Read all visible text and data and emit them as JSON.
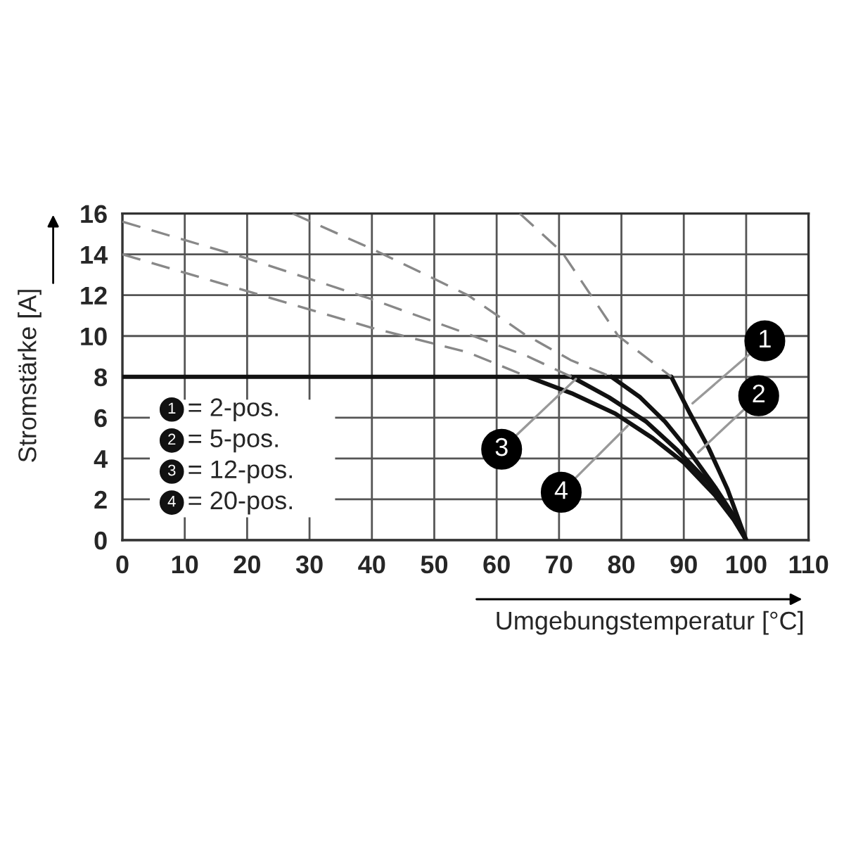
{
  "chart_data": {
    "type": "line",
    "xlabel": "Umgebungstemperatur [°C]",
    "ylabel": "Stromstärke [A]",
    "xlim": [
      0,
      110
    ],
    "xticks": [
      0,
      10,
      20,
      30,
      40,
      50,
      60,
      70,
      80,
      90,
      100,
      110
    ],
    "ylim": [
      0,
      16
    ],
    "yticks": [
      0,
      2,
      4,
      6,
      8,
      10,
      12,
      14,
      16
    ],
    "grid": true,
    "legend": "left",
    "series": [
      {
        "color": "#111111",
        "line_style": "solid",
        "x": [
          0,
          88
        ],
        "values": [
          8,
          8
        ]
      },
      {
        "name": "= 2-pos.",
        "color": "#111111",
        "line_style": "solid",
        "x": [
          88,
          91,
          94,
          97,
          100
        ],
        "values": [
          8,
          6.2,
          4.5,
          2.5,
          0
        ]
      },
      {
        "name": "= 5-pos.",
        "color": "#111111",
        "line_style": "solid",
        "x": [
          78.4,
          83,
          87,
          91,
          95,
          98,
          100
        ],
        "values": [
          8,
          7,
          5.8,
          4.3,
          2.6,
          1.2,
          0
        ]
      },
      {
        "name": "= 12-pos.",
        "color": "#111111",
        "line_style": "solid",
        "x": [
          72,
          78,
          84,
          89,
          94,
          98,
          100
        ],
        "values": [
          8,
          7,
          5.8,
          4.4,
          2.8,
          1.1,
          0
        ]
      },
      {
        "name": "= 20-pos.",
        "color": "#111111",
        "line_style": "solid",
        "x": [
          65,
          72,
          79,
          85,
          90,
          95,
          98,
          100
        ],
        "values": [
          8,
          7.2,
          6.2,
          5,
          3.8,
          2.2,
          1,
          0
        ]
      },
      {
        "color": "#888888",
        "line_style": "dashed",
        "x": [
          63.7,
          70.5,
          79.5,
          88
        ],
        "values": [
          16,
          14.1,
          10,
          8
        ]
      },
      {
        "color": "#888888",
        "line_style": "dashed",
        "x": [
          27.3,
          40.5,
          55.4,
          64.4,
          72,
          78.4
        ],
        "values": [
          16,
          14.2,
          12,
          10.1,
          8.8,
          8
        ]
      },
      {
        "color": "#888888",
        "line_style": "dashed",
        "x": [
          0,
          20,
          40,
          55.4,
          65,
          72
        ],
        "values": [
          15.6,
          13.8,
          11.8,
          10.1,
          9,
          8
        ]
      },
      {
        "color": "#888888",
        "line_style": "dashed",
        "x": [
          0,
          20,
          40,
          55.4,
          65
        ],
        "values": [
          14,
          12.2,
          10.4,
          9.2,
          8
        ]
      }
    ],
    "annotations": [
      {
        "text": "1",
        "x": 91.4,
        "y": 6.7
      },
      {
        "text": "2",
        "x": 92.3,
        "y": 4.3
      },
      {
        "text": "3",
        "x": 72.7,
        "y": 7.9
      },
      {
        "text": "4",
        "x": 81,
        "y": 5.6
      }
    ]
  }
}
